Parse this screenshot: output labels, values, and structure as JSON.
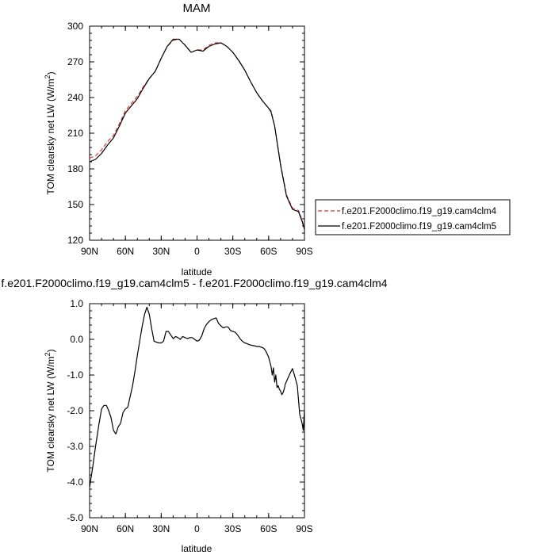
{
  "chart_data": [
    {
      "type": "line",
      "title": "MAM",
      "xlabel": "latitude",
      "ylabel": "TOM clearsky net LW (W/m",
      "ylabel_sup": "2",
      "ylabel_end": ")",
      "xlim": [
        90,
        -90
      ],
      "ylim": [
        120,
        300
      ],
      "xticks": [
        {
          "v": 90,
          "label": "90N"
        },
        {
          "v": 60,
          "label": "60N"
        },
        {
          "v": 30,
          "label": "30N"
        },
        {
          "v": 0,
          "label": "0"
        },
        {
          "v": -30,
          "label": "30S"
        },
        {
          "v": -60,
          "label": "60S"
        },
        {
          "v": -90,
          "label": "90S"
        }
      ],
      "yticks": [
        {
          "v": 120,
          "label": "120"
        },
        {
          "v": 150,
          "label": "150"
        },
        {
          "v": 180,
          "label": "180"
        },
        {
          "v": 210,
          "label": "210"
        },
        {
          "v": 240,
          "label": "240"
        },
        {
          "v": 270,
          "label": "270"
        },
        {
          "v": 300,
          "label": "300"
        }
      ],
      "legend": "right",
      "x": [
        90,
        85,
        80,
        75,
        70,
        65,
        60,
        55,
        50,
        45,
        40,
        35,
        30,
        25,
        20,
        15,
        10,
        5,
        0,
        -5,
        -10,
        -15,
        -20,
        -25,
        -30,
        -35,
        -40,
        -45,
        -50,
        -55,
        -60,
        -62,
        -65,
        -70,
        -75,
        -80,
        -85,
        -88,
        -90
      ],
      "series": [
        {
          "name": "f.e201.F2000climo.f19_g19.cam4clm4",
          "color": "#e03030",
          "dash": true,
          "values": [
            189,
            191,
            196,
            203,
            208,
            218,
            229,
            235,
            241,
            249,
            256,
            262,
            273,
            283,
            288,
            289,
            284,
            278,
            280,
            280,
            284,
            286,
            286,
            283,
            278,
            271,
            263,
            253,
            244,
            237,
            231,
            229,
            216,
            184,
            158,
            147,
            145,
            137,
            130
          ]
        },
        {
          "name": "f.e201.F2000climo.f19_g19.cam4clm5",
          "color": "#000000",
          "dash": false,
          "values": [
            186,
            188,
            193,
            200,
            206,
            216,
            227,
            233,
            239,
            248,
            256,
            262,
            273,
            283,
            289,
            289,
            284,
            278,
            280,
            279,
            283,
            285,
            286,
            283,
            278,
            271,
            263,
            253,
            244,
            237,
            231,
            228,
            216,
            183,
            157,
            146,
            144,
            136,
            129
          ]
        }
      ]
    },
    {
      "type": "line",
      "title": "f.e201.F2000climo.f19_g19.cam4clm5 - f.e201.F2000climo.f19_g19.cam4clm4",
      "xlabel": "latitude",
      "ylabel": "TOM clearsky net LW (W/m",
      "ylabel_sup": "2",
      "ylabel_end": ")",
      "xlim": [
        90,
        -90
      ],
      "ylim": [
        -5,
        1
      ],
      "xticks": [
        {
          "v": 90,
          "label": "90N"
        },
        {
          "v": 60,
          "label": "60N"
        },
        {
          "v": 30,
          "label": "30N"
        },
        {
          "v": 0,
          "label": "0"
        },
        {
          "v": -30,
          "label": "30S"
        },
        {
          "v": -60,
          "label": "60S"
        },
        {
          "v": -90,
          "label": "90S"
        }
      ],
      "yticks": [
        {
          "v": -5,
          "label": "-5.0"
        },
        {
          "v": -4,
          "label": "-4.0"
        },
        {
          "v": -3,
          "label": "-3.0"
        },
        {
          "v": -2,
          "label": "-2.0"
        },
        {
          "v": -1,
          "label": "-1.0"
        },
        {
          "v": 0,
          "label": "0.0"
        },
        {
          "v": 1,
          "label": "1.0"
        }
      ],
      "x": [
        90,
        87.5,
        85,
        82,
        80,
        78,
        76,
        74,
        72,
        70,
        68,
        66,
        64,
        62,
        60,
        58,
        56,
        54,
        52,
        50,
        48,
        46,
        44,
        42,
        40,
        38,
        36,
        34,
        32,
        30,
        28,
        26,
        24,
        22,
        20,
        18,
        16,
        14,
        12,
        10,
        8,
        6,
        4,
        2,
        0,
        -2,
        -4,
        -6,
        -8,
        -10,
        -12,
        -14,
        -16,
        -18,
        -20,
        -22,
        -24,
        -26,
        -28,
        -30,
        -32,
        -34,
        -36,
        -38,
        -40,
        -42,
        -44,
        -46,
        -48,
        -50,
        -52,
        -54,
        -56,
        -58,
        -60,
        -62,
        -63,
        -64,
        -65,
        -66,
        -67,
        -68,
        -69,
        -70,
        -71,
        -72,
        -73,
        -74,
        -76,
        -78,
        -80,
        -82,
        -84,
        -86,
        -88,
        -89,
        -90
      ],
      "series": [
        {
          "name": "",
          "color": "#000000",
          "dash": false,
          "values": [
            -4.15,
            -3.6,
            -3.0,
            -2.35,
            -1.95,
            -1.85,
            -1.85,
            -2.0,
            -2.2,
            -2.55,
            -2.65,
            -2.45,
            -2.35,
            -2.05,
            -1.95,
            -1.9,
            -1.6,
            -1.3,
            -0.9,
            -0.45,
            -0.05,
            0.35,
            0.7,
            0.9,
            0.7,
            0.3,
            -0.05,
            -0.08,
            -0.1,
            -0.1,
            -0.05,
            0.22,
            0.22,
            0.12,
            0.02,
            0.08,
            0.05,
            0.0,
            0.08,
            0.05,
            0.02,
            0.05,
            0.05,
            0.0,
            -0.05,
            -0.02,
            0.1,
            0.3,
            0.42,
            0.5,
            0.55,
            0.58,
            0.6,
            0.45,
            0.38,
            0.32,
            0.35,
            0.35,
            0.25,
            0.22,
            0.2,
            0.12,
            0.02,
            -0.05,
            -0.1,
            -0.12,
            -0.15,
            -0.17,
            -0.18,
            -0.2,
            -0.2,
            -0.22,
            -0.25,
            -0.35,
            -0.5,
            -0.75,
            -1.0,
            -0.8,
            -1.2,
            -1.0,
            -1.35,
            -1.3,
            -1.4,
            -1.45,
            -1.55,
            -1.5,
            -1.4,
            -1.25,
            -1.1,
            -0.95,
            -0.82,
            -1.05,
            -1.3,
            -2.1,
            -2.35,
            -2.55,
            -2.0
          ]
        }
      ]
    }
  ]
}
